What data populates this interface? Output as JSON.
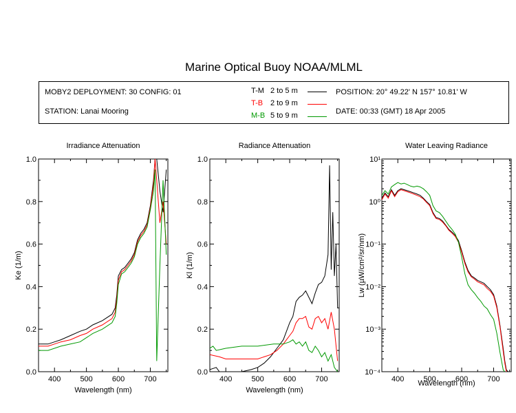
{
  "header": {
    "title": "Marine Optical Buoy NOAA/MLML",
    "deployment": "MOBY2 DEPLOYMENT: 30 CONFIG: 01",
    "station": "STATION: Lanai Mooring",
    "position": "POSITION: 20° 49.22' N   157° 10.81' W",
    "date": "DATE: 00:33 (GMT) 18 Apr 2005",
    "legend": [
      {
        "code": "T-M",
        "range": "2 to 5  m",
        "color": "#000000"
      },
      {
        "code": "T-B",
        "range": "2 to 9  m",
        "color": "#ff0000"
      },
      {
        "code": "M-B",
        "range": "5 to 9  m",
        "color": "#009900"
      }
    ]
  },
  "chart_data": [
    {
      "type": "line",
      "title": "Irradiance Attenuation",
      "xlabel": "Wavelength (nm)",
      "ylabel": "Ke  (1/m)",
      "xlim": [
        350,
        755
      ],
      "ylim": [
        0,
        1
      ],
      "xticks": [
        "400",
        "500",
        "600",
        "700"
      ],
      "yticks": [
        "0.0",
        "0.2",
        "0.4",
        "0.6",
        "0.8",
        "1.0"
      ],
      "series": [
        {
          "name": "T-M",
          "color": "#000000",
          "x": [
            350,
            380,
            400,
            420,
            450,
            480,
            500,
            510,
            520,
            550,
            580,
            590,
            595,
            600,
            610,
            620,
            630,
            640,
            650,
            660,
            670,
            680,
            690,
            700,
            710,
            715,
            720,
            730,
            740,
            750
          ],
          "y": [
            0.13,
            0.13,
            0.14,
            0.15,
            0.17,
            0.19,
            0.2,
            0.21,
            0.22,
            0.24,
            0.27,
            0.3,
            0.36,
            0.45,
            0.48,
            0.49,
            0.51,
            0.53,
            0.56,
            0.62,
            0.65,
            0.67,
            0.7,
            0.78,
            0.9,
            1.0,
            1.0,
            0.85,
            0.75,
            0.95
          ]
        },
        {
          "name": "T-B",
          "color": "#ff0000",
          "x": [
            350,
            380,
            400,
            420,
            450,
            480,
            500,
            510,
            520,
            550,
            580,
            590,
            595,
            600,
            610,
            620,
            630,
            640,
            650,
            660,
            670,
            680,
            690,
            700,
            710,
            715,
            720,
            730,
            740,
            750
          ],
          "y": [
            0.12,
            0.12,
            0.13,
            0.14,
            0.15,
            0.17,
            0.18,
            0.19,
            0.2,
            0.22,
            0.25,
            0.28,
            0.34,
            0.43,
            0.47,
            0.48,
            0.5,
            0.52,
            0.55,
            0.61,
            0.64,
            0.66,
            0.69,
            0.77,
            0.88,
            1.0,
            0.9,
            0.7,
            0.8,
            0.6
          ]
        },
        {
          "name": "M-B",
          "color": "#009900",
          "x": [
            350,
            380,
            400,
            420,
            450,
            480,
            500,
            510,
            520,
            550,
            580,
            590,
            595,
            600,
            610,
            620,
            630,
            640,
            650,
            660,
            670,
            680,
            690,
            700,
            710,
            715,
            720,
            730,
            740,
            750
          ],
          "y": [
            0.1,
            0.1,
            0.11,
            0.12,
            0.13,
            0.14,
            0.16,
            0.17,
            0.18,
            0.2,
            0.23,
            0.26,
            0.32,
            0.41,
            0.46,
            0.47,
            0.49,
            0.51,
            0.54,
            0.6,
            0.63,
            0.65,
            0.68,
            0.76,
            0.85,
            0.95,
            0.05,
            0.5,
            0.9,
            0.55
          ]
        }
      ]
    },
    {
      "type": "line",
      "title": "Radiance Attenuation",
      "xlabel": "Wavelength (nm)",
      "ylabel": "Kl  (1/m)",
      "xlim": [
        350,
        755
      ],
      "ylim": [
        0,
        1
      ],
      "xticks": [
        "400",
        "500",
        "600",
        "700"
      ],
      "yticks": [
        "0.0",
        "0.2",
        "0.4",
        "0.6",
        "0.8",
        "1.0"
      ],
      "series": [
        {
          "name": "T-M",
          "color": "#000000",
          "x": [
            350,
            370,
            380,
            400,
            420,
            450,
            480,
            500,
            520,
            540,
            560,
            580,
            590,
            600,
            610,
            620,
            630,
            640,
            650,
            660,
            670,
            680,
            690,
            700,
            710,
            720,
            725,
            730,
            735,
            740,
            745,
            750
          ],
          "y": [
            0.01,
            0.02,
            0.0,
            0.0,
            0.0,
            0.0,
            0.01,
            0.02,
            0.04,
            0.07,
            0.11,
            0.15,
            0.19,
            0.23,
            0.26,
            0.33,
            0.35,
            0.36,
            0.38,
            0.35,
            0.32,
            0.37,
            0.41,
            0.42,
            0.45,
            0.55,
            0.97,
            0.48,
            0.75,
            0.45,
            0.6,
            0.3
          ]
        },
        {
          "name": "T-B",
          "color": "#ff0000",
          "x": [
            350,
            380,
            400,
            450,
            500,
            520,
            540,
            560,
            580,
            590,
            600,
            610,
            620,
            630,
            640,
            650,
            660,
            670,
            680,
            690,
            700,
            710,
            720,
            730,
            740,
            750
          ],
          "y": [
            0.08,
            0.07,
            0.06,
            0.06,
            0.06,
            0.07,
            0.08,
            0.1,
            0.13,
            0.15,
            0.17,
            0.19,
            0.23,
            0.25,
            0.25,
            0.26,
            0.21,
            0.2,
            0.25,
            0.26,
            0.23,
            0.25,
            0.2,
            0.28,
            0.2,
            0.05
          ]
        },
        {
          "name": "M-B",
          "color": "#009900",
          "x": [
            350,
            360,
            370,
            400,
            450,
            500,
            550,
            580,
            600,
            610,
            620,
            630,
            640,
            650,
            660,
            670,
            680,
            690,
            700,
            710,
            720,
            730,
            740,
            750
          ],
          "y": [
            0.11,
            0.12,
            0.1,
            0.11,
            0.12,
            0.12,
            0.13,
            0.13,
            0.14,
            0.15,
            0.13,
            0.14,
            0.12,
            0.14,
            0.1,
            0.09,
            0.12,
            0.1,
            0.07,
            0.09,
            0.05,
            0.08,
            0.02,
            0.0
          ]
        }
      ]
    },
    {
      "type": "line",
      "title": "Water Leaving Radiance",
      "xlabel": "Wavelength (nm)",
      "ylabel": "Lw  (µW/cm²/sr/nm)",
      "yscale": "log",
      "xlim": [
        350,
        755
      ],
      "ylim": [
        0.0001,
        10
      ],
      "xticks": [
        "400",
        "500",
        "600",
        "700"
      ],
      "yticks": [
        "10⁻⁴",
        "10⁻³",
        "10⁻²",
        "10⁻¹",
        "10⁰",
        "10¹"
      ],
      "series": [
        {
          "name": "T-M",
          "color": "#000000",
          "x": [
            350,
            360,
            370,
            380,
            390,
            400,
            410,
            420,
            430,
            440,
            450,
            460,
            470,
            480,
            490,
            500,
            510,
            520,
            530,
            540,
            550,
            560,
            570,
            580,
            590,
            600,
            610,
            620,
            630,
            640,
            650,
            660,
            670,
            680,
            690,
            700,
            710,
            720,
            730,
            735,
            740,
            745
          ],
          "y": [
            1.2,
            1.6,
            1.3,
            1.9,
            1.4,
            1.8,
            2.0,
            1.9,
            1.8,
            1.7,
            1.6,
            1.5,
            1.4,
            1.2,
            1.0,
            0.85,
            0.55,
            0.42,
            0.4,
            0.35,
            0.28,
            0.22,
            0.19,
            0.16,
            0.12,
            0.07,
            0.038,
            0.024,
            0.018,
            0.016,
            0.014,
            0.013,
            0.012,
            0.01,
            0.0085,
            0.0065,
            0.0035,
            0.0012,
            0.00035,
            0.00018,
            0.00011,
            0.0001
          ]
        },
        {
          "name": "T-B",
          "color": "#ff0000",
          "x": [
            350,
            360,
            370,
            380,
            390,
            400,
            410,
            420,
            430,
            440,
            450,
            460,
            470,
            480,
            490,
            500,
            510,
            520,
            530,
            540,
            550,
            560,
            570,
            580,
            590,
            600,
            610,
            620,
            630,
            640,
            650,
            660,
            670,
            680,
            690,
            700,
            710,
            720,
            730,
            735,
            740
          ],
          "y": [
            1.1,
            1.5,
            1.2,
            1.8,
            1.3,
            1.7,
            1.9,
            1.8,
            1.7,
            1.6,
            1.5,
            1.4,
            1.3,
            1.15,
            0.95,
            0.8,
            0.52,
            0.4,
            0.38,
            0.33,
            0.27,
            0.21,
            0.18,
            0.15,
            0.11,
            0.065,
            0.035,
            0.022,
            0.017,
            0.015,
            0.013,
            0.012,
            0.011,
            0.009,
            0.0078,
            0.006,
            0.0032,
            0.0011,
            0.0003,
            0.00016,
            0.0001
          ]
        },
        {
          "name": "M-B",
          "color": "#009900",
          "x": [
            350,
            360,
            370,
            380,
            390,
            400,
            410,
            420,
            430,
            440,
            450,
            460,
            470,
            480,
            490,
            500,
            510,
            520,
            530,
            540,
            550,
            560,
            570,
            580,
            590,
            600,
            610,
            620,
            630,
            640,
            650,
            660,
            670,
            680,
            690,
            700,
            710,
            720,
            730,
            735
          ],
          "y": [
            1.4,
            1.8,
            1.5,
            2.2,
            2.5,
            2.8,
            2.6,
            2.7,
            2.5,
            2.3,
            2.2,
            2.3,
            2.2,
            2.0,
            1.7,
            1.4,
            0.8,
            0.6,
            0.55,
            0.45,
            0.35,
            0.27,
            0.22,
            0.17,
            0.11,
            0.05,
            0.02,
            0.011,
            0.0085,
            0.007,
            0.0055,
            0.0045,
            0.0035,
            0.003,
            0.0022,
            0.0017,
            0.0008,
            0.00028,
            0.00011,
            0.0001
          ]
        }
      ]
    }
  ]
}
